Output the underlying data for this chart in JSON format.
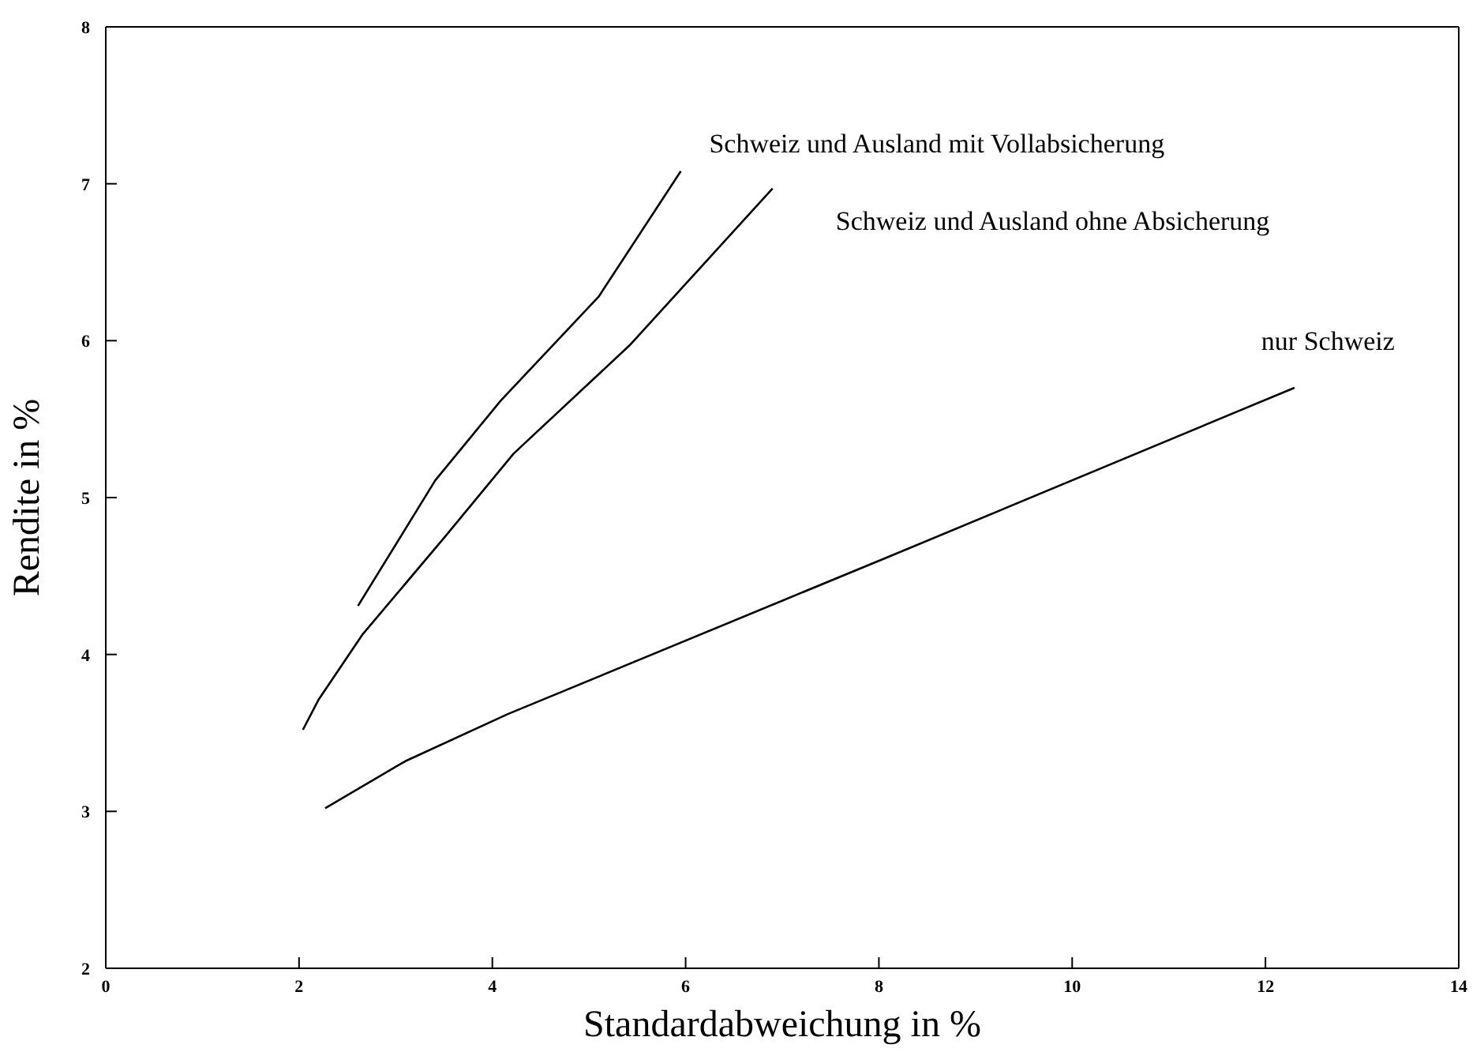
{
  "chart_data": {
    "type": "line",
    "xlabel": "Standardabweichung in %",
    "ylabel": "Rendite in %",
    "xlim": [
      0,
      14
    ],
    "xticks": [
      0,
      2,
      4,
      6,
      8,
      10,
      12,
      14
    ],
    "ylim": [
      2,
      8
    ],
    "yticks": [
      2,
      3,
      4,
      5,
      6,
      7,
      8
    ],
    "grid": false,
    "legend": false,
    "marker": "none",
    "line_style": "solid",
    "series": [
      {
        "name": "Schweiz und Ausland mit Vollabsicherung",
        "color": "#000000",
        "x": [
          2.61,
          3.41,
          4.09,
          5.1,
          5.95
        ],
        "values": [
          4.31,
          5.11,
          5.62,
          6.28,
          7.08
        ]
      },
      {
        "name": "Schweiz und Ausland ohne Absicherung",
        "color": "#000000",
        "x": [
          2.04,
          2.2,
          2.66,
          3.51,
          4.22,
          5.42,
          6.9
        ],
        "values": [
          3.52,
          3.71,
          4.13,
          4.75,
          5.28,
          5.97,
          6.97
        ]
      },
      {
        "name": "nur Schweiz",
        "color": "#000000",
        "x": [
          2.27,
          3.1,
          4.16,
          8.09,
          12.3
        ],
        "values": [
          3.02,
          3.32,
          3.62,
          4.62,
          5.7
        ]
      }
    ]
  }
}
